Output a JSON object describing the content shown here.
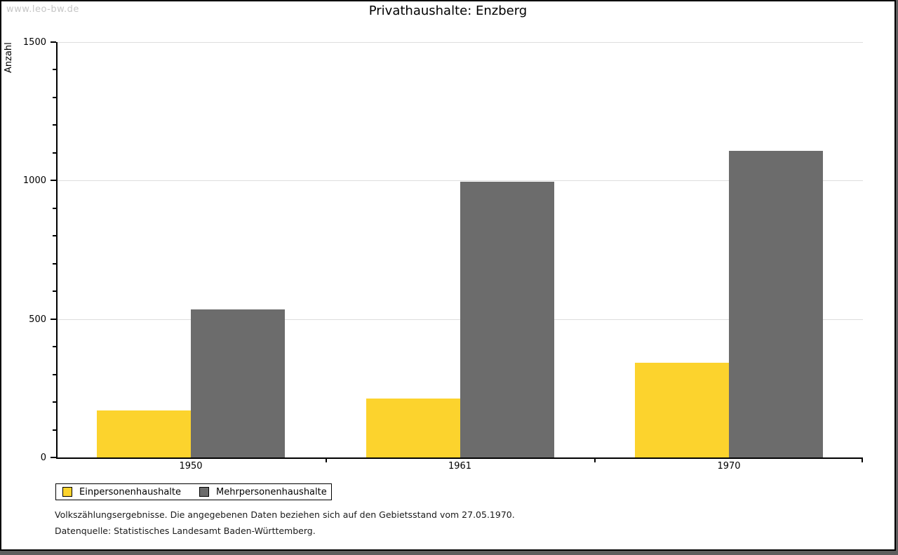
{
  "watermark": "www.leo-bw.de",
  "header": {
    "title": "Privathaushalte: Enzberg"
  },
  "chart_data": {
    "type": "bar",
    "title": "Privathaushalte: Enzberg",
    "categories": [
      "1950",
      "1961",
      "1970"
    ],
    "series": [
      {
        "name": "Einpersonenhaushalte",
        "color": "#FCD32D",
        "values": [
          170,
          212,
          341
        ]
      },
      {
        "name": "Mehrpersonenhaushalte",
        "color": "#6C6C6C",
        "values": [
          535,
          995,
          1107
        ]
      }
    ],
    "xlabel": "",
    "ylabel": "Anzahl",
    "ylim": [
      0,
      1500
    ],
    "ytick_major": 500,
    "ytick_minor": 100,
    "grid": true,
    "gridline_color": "#DEDEDE",
    "legend_position": "bottom-left"
  },
  "footnotes": {
    "line1": "Volkszählungsergebnisse. Die angegebenen Daten beziehen sich auf den Gebietsstand vom 27.05.1970.",
    "line2": "Datenquelle: Statistisches Landesamt Baden-Württemberg."
  }
}
